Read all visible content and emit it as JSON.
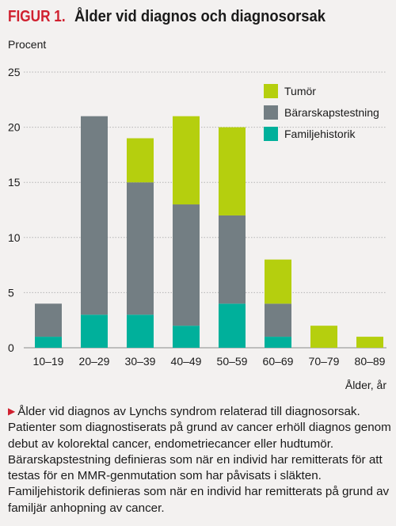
{
  "figure": {
    "label": "FIGUR 1.",
    "title": "Ålder vid diagnos och diagnosorsak",
    "caption": "Ålder vid diagnos av Lynchs syndrom relaterad till diagnosorsak. Patienter som diagnostiserats på grund av cancer erhöll diagnos genom debut av kolorektal cancer, endometriecancer eller hudtumör. Bärarskapstestning definieras som när en individ har remitterats för att testas för en MMR-genmutation som har påvisats i släkten. Familjehistorik definieras som när en individ har remitterats på grund av familjär anhopning av cancer.",
    "caption_arrow": "▶"
  },
  "chart_data": {
    "type": "bar",
    "stacked": true,
    "ylabel": "Procent",
    "xlabel": "Ålder, år",
    "ylim": [
      0,
      25
    ],
    "yticks": [
      0,
      5,
      10,
      15,
      20,
      25
    ],
    "grid": true,
    "legend_position": "top-right",
    "categories": [
      "10–19",
      "20–29",
      "30–39",
      "40–49",
      "50–59",
      "60–69",
      "70–79",
      "80–89"
    ],
    "series": [
      {
        "name": "Familjehistorik",
        "color": "#00b09b",
        "values": [
          1,
          3,
          3,
          2,
          4,
          1,
          0,
          0
        ]
      },
      {
        "name": "Bärarskapstestning",
        "color": "#737e83",
        "values": [
          3,
          18,
          12,
          11,
          8,
          3,
          0,
          0
        ]
      },
      {
        "name": "Tumör",
        "color": "#b5cf0e",
        "values": [
          0,
          0,
          4,
          8,
          8,
          4,
          2,
          1
        ]
      }
    ],
    "legend_order": [
      "Tumör",
      "Bärarskapstestning",
      "Familjehistorik"
    ]
  }
}
